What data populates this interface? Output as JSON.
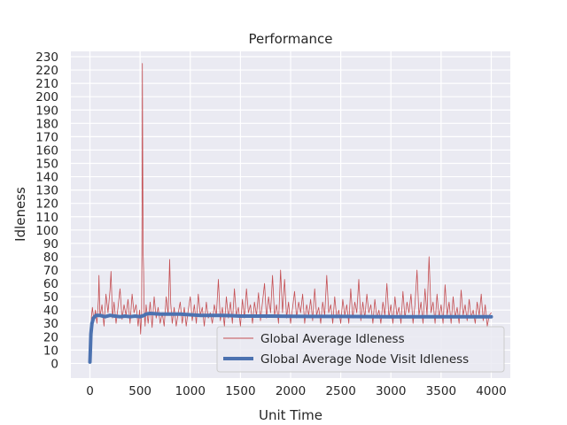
{
  "chart_data": {
    "type": "line",
    "title": "Performance",
    "xlabel": "Unit Time",
    "ylabel": "Idleness",
    "xlim": [
      -190,
      4190
    ],
    "ylim": [
      -11,
      234
    ],
    "xticks": [
      "0",
      "500",
      "1000",
      "1500",
      "2000",
      "2500",
      "3000",
      "3500",
      "4000"
    ],
    "xtick_values": [
      0,
      500,
      1000,
      1500,
      2000,
      2500,
      3000,
      3500,
      4000
    ],
    "yticks": [
      "0",
      "10",
      "20",
      "30",
      "40",
      "50",
      "60",
      "70",
      "80",
      "90",
      "100",
      "110",
      "120",
      "130",
      "140",
      "150",
      "160",
      "170",
      "180",
      "190",
      "200",
      "210",
      "220",
      "230"
    ],
    "ytick_values": [
      0,
      10,
      20,
      30,
      40,
      50,
      60,
      70,
      80,
      90,
      100,
      110,
      120,
      130,
      140,
      150,
      160,
      170,
      180,
      190,
      200,
      210,
      220,
      230
    ],
    "grid": true,
    "legend_position": "lower-right",
    "series": [
      {
        "name": "Global Average Idleness",
        "color": "#c44e52",
        "style": "thin",
        "points": [
          [
            0,
            2
          ],
          [
            8,
            20
          ],
          [
            15,
            35
          ],
          [
            25,
            42
          ],
          [
            40,
            32
          ],
          [
            55,
            40
          ],
          [
            70,
            30
          ],
          [
            85,
            48
          ],
          [
            90,
            66
          ],
          [
            100,
            35
          ],
          [
            120,
            44
          ],
          [
            140,
            28
          ],
          [
            160,
            52
          ],
          [
            180,
            38
          ],
          [
            200,
            55
          ],
          [
            210,
            69
          ],
          [
            225,
            34
          ],
          [
            240,
            46
          ],
          [
            260,
            30
          ],
          [
            280,
            42
          ],
          [
            300,
            56
          ],
          [
            320,
            33
          ],
          [
            340,
            44
          ],
          [
            360,
            36
          ],
          [
            380,
            48
          ],
          [
            400,
            30
          ],
          [
            420,
            52
          ],
          [
            440,
            38
          ],
          [
            460,
            44
          ],
          [
            480,
            28
          ],
          [
            495,
            40
          ],
          [
            505,
            22
          ],
          [
            515,
            36
          ],
          [
            520,
            120
          ],
          [
            523,
            225
          ],
          [
            527,
            140
          ],
          [
            531,
            82
          ],
          [
            535,
            70
          ],
          [
            540,
            40
          ],
          [
            550,
            28
          ],
          [
            560,
            44
          ],
          [
            580,
            30
          ],
          [
            600,
            46
          ],
          [
            620,
            27
          ],
          [
            640,
            50
          ],
          [
            660,
            34
          ],
          [
            680,
            42
          ],
          [
            700,
            30
          ],
          [
            720,
            38
          ],
          [
            740,
            28
          ],
          [
            760,
            50
          ],
          [
            780,
            36
          ],
          [
            795,
            78
          ],
          [
            805,
            45
          ],
          [
            820,
            30
          ],
          [
            840,
            42
          ],
          [
            860,
            28
          ],
          [
            880,
            38
          ],
          [
            900,
            46
          ],
          [
            920,
            30
          ],
          [
            940,
            42
          ],
          [
            960,
            28
          ],
          [
            980,
            40
          ],
          [
            1000,
            50
          ],
          [
            1020,
            32
          ],
          [
            1040,
            44
          ],
          [
            1060,
            30
          ],
          [
            1080,
            52
          ],
          [
            1100,
            36
          ],
          [
            1120,
            42
          ],
          [
            1140,
            28
          ],
          [
            1160,
            46
          ],
          [
            1180,
            34
          ],
          [
            1200,
            38
          ],
          [
            1220,
            30
          ],
          [
            1240,
            44
          ],
          [
            1260,
            36
          ],
          [
            1280,
            63
          ],
          [
            1300,
            32
          ],
          [
            1320,
            42
          ],
          [
            1340,
            28
          ],
          [
            1360,
            50
          ],
          [
            1380,
            34
          ],
          [
            1400,
            46
          ],
          [
            1420,
            30
          ],
          [
            1440,
            56
          ],
          [
            1460,
            36
          ],
          [
            1480,
            42
          ],
          [
            1500,
            28
          ],
          [
            1520,
            48
          ],
          [
            1540,
            34
          ],
          [
            1560,
            56
          ],
          [
            1580,
            38
          ],
          [
            1600,
            44
          ],
          [
            1620,
            30
          ],
          [
            1640,
            46
          ],
          [
            1660,
            36
          ],
          [
            1680,
            53
          ],
          [
            1700,
            32
          ],
          [
            1720,
            46
          ],
          [
            1740,
            60
          ],
          [
            1760,
            34
          ],
          [
            1780,
            50
          ],
          [
            1800,
            38
          ],
          [
            1820,
            66
          ],
          [
            1840,
            36
          ],
          [
            1860,
            44
          ],
          [
            1880,
            30
          ],
          [
            1900,
            70
          ],
          [
            1920,
            38
          ],
          [
            1940,
            63
          ],
          [
            1960,
            34
          ],
          [
            1980,
            46
          ],
          [
            2000,
            30
          ],
          [
            2020,
            42
          ],
          [
            2040,
            54
          ],
          [
            2060,
            34
          ],
          [
            2080,
            46
          ],
          [
            2100,
            38
          ],
          [
            2120,
            52
          ],
          [
            2140,
            30
          ],
          [
            2160,
            44
          ],
          [
            2180,
            36
          ],
          [
            2200,
            48
          ],
          [
            2220,
            32
          ],
          [
            2240,
            56
          ],
          [
            2260,
            36
          ],
          [
            2280,
            42
          ],
          [
            2300,
            30
          ],
          [
            2320,
            46
          ],
          [
            2340,
            36
          ],
          [
            2360,
            66
          ],
          [
            2380,
            38
          ],
          [
            2400,
            44
          ],
          [
            2420,
            30
          ],
          [
            2440,
            50
          ],
          [
            2460,
            34
          ],
          [
            2480,
            40
          ],
          [
            2500,
            30
          ],
          [
            2520,
            48
          ],
          [
            2540,
            36
          ],
          [
            2560,
            44
          ],
          [
            2580,
            30
          ],
          [
            2600,
            56
          ],
          [
            2620,
            34
          ],
          [
            2640,
            46
          ],
          [
            2660,
            38
          ],
          [
            2680,
            63
          ],
          [
            2700,
            32
          ],
          [
            2720,
            46
          ],
          [
            2740,
            34
          ],
          [
            2760,
            52
          ],
          [
            2780,
            38
          ],
          [
            2800,
            44
          ],
          [
            2820,
            30
          ],
          [
            2840,
            48
          ],
          [
            2860,
            34
          ],
          [
            2880,
            40
          ],
          [
            2900,
            30
          ],
          [
            2920,
            46
          ],
          [
            2940,
            36
          ],
          [
            2960,
            60
          ],
          [
            2980,
            34
          ],
          [
            3000,
            44
          ],
          [
            3020,
            30
          ],
          [
            3040,
            50
          ],
          [
            3060,
            36
          ],
          [
            3080,
            42
          ],
          [
            3100,
            30
          ],
          [
            3120,
            54
          ],
          [
            3140,
            34
          ],
          [
            3160,
            46
          ],
          [
            3180,
            38
          ],
          [
            3200,
            52
          ],
          [
            3220,
            30
          ],
          [
            3240,
            44
          ],
          [
            3260,
            70
          ],
          [
            3280,
            36
          ],
          [
            3300,
            46
          ],
          [
            3320,
            30
          ],
          [
            3340,
            56
          ],
          [
            3360,
            36
          ],
          [
            3380,
            80
          ],
          [
            3400,
            38
          ],
          [
            3420,
            46
          ],
          [
            3440,
            30
          ],
          [
            3460,
            52
          ],
          [
            3480,
            34
          ],
          [
            3500,
            44
          ],
          [
            3520,
            30
          ],
          [
            3540,
            59
          ],
          [
            3560,
            36
          ],
          [
            3580,
            46
          ],
          [
            3600,
            30
          ],
          [
            3620,
            50
          ],
          [
            3640,
            34
          ],
          [
            3660,
            42
          ],
          [
            3680,
            30
          ],
          [
            3700,
            55
          ],
          [
            3720,
            36
          ],
          [
            3740,
            44
          ],
          [
            3760,
            32
          ],
          [
            3780,
            48
          ],
          [
            3800,
            34
          ],
          [
            3820,
            40
          ],
          [
            3840,
            30
          ],
          [
            3860,
            46
          ],
          [
            3880,
            36
          ],
          [
            3900,
            52
          ],
          [
            3920,
            32
          ],
          [
            3940,
            44
          ],
          [
            3960,
            28
          ],
          [
            3980,
            36
          ],
          [
            4000,
            38
          ]
        ]
      },
      {
        "name": "Global Average Node Visit Idleness",
        "color": "#4c72b0",
        "style": "thick",
        "points": [
          [
            0,
            1
          ],
          [
            5,
            12
          ],
          [
            10,
            22
          ],
          [
            20,
            30
          ],
          [
            35,
            34
          ],
          [
            60,
            36
          ],
          [
            100,
            36
          ],
          [
            150,
            35
          ],
          [
            200,
            36
          ],
          [
            250,
            35.5
          ],
          [
            300,
            35
          ],
          [
            350,
            35.5
          ],
          [
            400,
            35
          ],
          [
            450,
            35.5
          ],
          [
            500,
            35
          ],
          [
            540,
            36
          ],
          [
            560,
            37
          ],
          [
            600,
            37.5
          ],
          [
            700,
            37
          ],
          [
            800,
            37
          ],
          [
            900,
            37
          ],
          [
            1000,
            36.5
          ],
          [
            1100,
            36
          ],
          [
            1200,
            36
          ],
          [
            1300,
            36
          ],
          [
            1400,
            35.8
          ],
          [
            1500,
            35.5
          ],
          [
            1600,
            35.5
          ],
          [
            1800,
            35.5
          ],
          [
            2000,
            35.3
          ],
          [
            2200,
            35.2
          ],
          [
            2500,
            35.2
          ],
          [
            2800,
            35.1
          ],
          [
            3000,
            35
          ],
          [
            3300,
            35
          ],
          [
            3600,
            35
          ],
          [
            3800,
            35
          ],
          [
            4000,
            35
          ]
        ]
      }
    ]
  }
}
